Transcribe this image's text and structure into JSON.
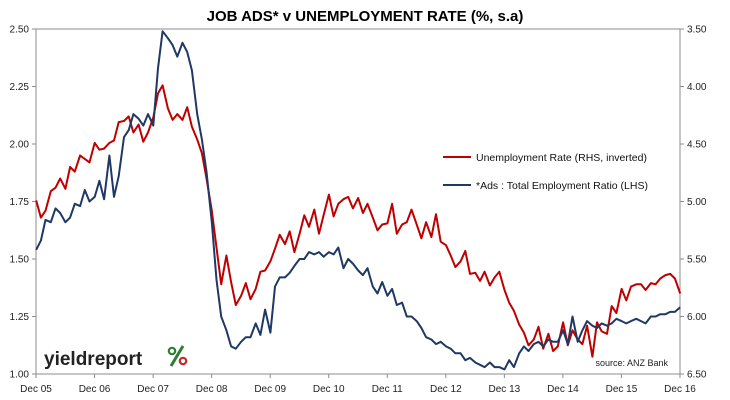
{
  "chart_data": {
    "type": "line",
    "title": "JOB ADS* v UNEMPLOYMENT RATE (%, s.a)",
    "source": "source: ANZ Bank",
    "brand": {
      "text": "yieldreport",
      "symbol": "%",
      "symbol_colors": [
        "#2e7d32",
        "#c62828"
      ]
    },
    "grid": false,
    "legend_position": "center-right",
    "x_axis": {
      "range": [
        2005.917,
        2016.917
      ],
      "tick_values": [
        2005.917,
        2006.917,
        2007.917,
        2008.917,
        2009.917,
        2010.917,
        2011.917,
        2012.917,
        2013.917,
        2014.917,
        2015.917,
        2016.917
      ],
      "tick_labels": [
        "Dec 05",
        "Dec 06",
        "Dec 07",
        "Dec 08",
        "Dec 09",
        "Dec 10",
        "Dec 11",
        "Dec 12",
        "Dec 13",
        "Dec 14",
        "Dec 15",
        "Dec 16"
      ]
    },
    "y_axis_left": {
      "range": [
        1.0,
        2.5
      ],
      "tick_values": [
        1.0,
        1.25,
        1.5,
        1.75,
        2.0,
        2.25,
        2.5
      ],
      "tick_labels": [
        "1.00",
        "1.25",
        "1.50",
        "1.75",
        "2.00",
        "2.25",
        "2.50"
      ]
    },
    "y_axis_right": {
      "range": [
        3.5,
        6.5
      ],
      "inverted": true,
      "tick_values": [
        3.5,
        4.0,
        4.5,
        5.0,
        5.5,
        6.0,
        6.5
      ],
      "tick_labels": [
        "3.50",
        "4.00",
        "4.50",
        "5.00",
        "5.50",
        "6.00",
        "6.50"
      ]
    },
    "series": [
      {
        "name": "Unemployment Rate (RHS, inverted)",
        "color": "#c00000",
        "axis": "right",
        "points": [
          [
            2005.92,
            4.99
          ],
          [
            2006.0,
            5.14
          ],
          [
            2006.08,
            5.08
          ],
          [
            2006.17,
            4.91
          ],
          [
            2006.25,
            4.88
          ],
          [
            2006.33,
            4.8
          ],
          [
            2006.42,
            4.89
          ],
          [
            2006.5,
            4.7
          ],
          [
            2006.58,
            4.74
          ],
          [
            2006.67,
            4.6
          ],
          [
            2006.75,
            4.63
          ],
          [
            2006.83,
            4.66
          ],
          [
            2006.92,
            4.49
          ],
          [
            2007.0,
            4.55
          ],
          [
            2007.08,
            4.54
          ],
          [
            2007.17,
            4.49
          ],
          [
            2007.25,
            4.47
          ],
          [
            2007.33,
            4.31
          ],
          [
            2007.42,
            4.3
          ],
          [
            2007.5,
            4.26
          ],
          [
            2007.58,
            4.4
          ],
          [
            2007.67,
            4.33
          ],
          [
            2007.75,
            4.48
          ],
          [
            2007.83,
            4.4
          ],
          [
            2007.92,
            4.27
          ],
          [
            2008.0,
            4.06
          ],
          [
            2008.08,
            3.99
          ],
          [
            2008.17,
            4.19
          ],
          [
            2008.25,
            4.29
          ],
          [
            2008.33,
            4.24
          ],
          [
            2008.42,
            4.29
          ],
          [
            2008.5,
            4.18
          ],
          [
            2008.58,
            4.35
          ],
          [
            2008.67,
            4.46
          ],
          [
            2008.75,
            4.58
          ],
          [
            2008.83,
            4.8
          ],
          [
            2008.92,
            5.08
          ],
          [
            2009.0,
            5.4
          ],
          [
            2009.08,
            5.72
          ],
          [
            2009.17,
            5.47
          ],
          [
            2009.25,
            5.7
          ],
          [
            2009.33,
            5.9
          ],
          [
            2009.42,
            5.82
          ],
          [
            2009.5,
            5.71
          ],
          [
            2009.58,
            5.85
          ],
          [
            2009.67,
            5.76
          ],
          [
            2009.75,
            5.61
          ],
          [
            2009.83,
            5.6
          ],
          [
            2009.92,
            5.52
          ],
          [
            2010.0,
            5.41
          ],
          [
            2010.08,
            5.29
          ],
          [
            2010.17,
            5.37
          ],
          [
            2010.25,
            5.26
          ],
          [
            2010.33,
            5.44
          ],
          [
            2010.42,
            5.28
          ],
          [
            2010.5,
            5.12
          ],
          [
            2010.58,
            5.22
          ],
          [
            2010.67,
            5.07
          ],
          [
            2010.75,
            5.28
          ],
          [
            2010.83,
            5.12
          ],
          [
            2010.92,
            4.94
          ],
          [
            2011.0,
            5.13
          ],
          [
            2011.08,
            5.02
          ],
          [
            2011.17,
            4.98
          ],
          [
            2011.25,
            4.96
          ],
          [
            2011.33,
            5.06
          ],
          [
            2011.42,
            4.97
          ],
          [
            2011.5,
            5.1
          ],
          [
            2011.58,
            5.02
          ],
          [
            2011.67,
            5.14
          ],
          [
            2011.75,
            5.25
          ],
          [
            2011.83,
            5.2
          ],
          [
            2011.92,
            5.19
          ],
          [
            2012.0,
            5.02
          ],
          [
            2012.08,
            5.28
          ],
          [
            2012.17,
            5.2
          ],
          [
            2012.25,
            5.18
          ],
          [
            2012.33,
            5.07
          ],
          [
            2012.42,
            5.2
          ],
          [
            2012.5,
            5.32
          ],
          [
            2012.58,
            5.18
          ],
          [
            2012.67,
            5.31
          ],
          [
            2012.75,
            5.11
          ],
          [
            2012.83,
            5.35
          ],
          [
            2012.92,
            5.38
          ],
          [
            2013.0,
            5.47
          ],
          [
            2013.08,
            5.57
          ],
          [
            2013.17,
            5.52
          ],
          [
            2013.25,
            5.43
          ],
          [
            2013.33,
            5.63
          ],
          [
            2013.42,
            5.62
          ],
          [
            2013.5,
            5.69
          ],
          [
            2013.58,
            5.61
          ],
          [
            2013.67,
            5.73
          ],
          [
            2013.75,
            5.66
          ],
          [
            2013.83,
            5.61
          ],
          [
            2013.92,
            5.77
          ],
          [
            2014.0,
            5.88
          ],
          [
            2014.08,
            5.95
          ],
          [
            2014.17,
            6.07
          ],
          [
            2014.25,
            6.14
          ],
          [
            2014.33,
            6.25
          ],
          [
            2014.42,
            6.2
          ],
          [
            2014.5,
            6.09
          ],
          [
            2014.58,
            6.28
          ],
          [
            2014.67,
            6.15
          ],
          [
            2014.75,
            6.3
          ],
          [
            2014.83,
            6.26
          ],
          [
            2014.92,
            6.05
          ],
          [
            2015.0,
            6.25
          ],
          [
            2015.08,
            6.12
          ],
          [
            2015.17,
            6.2
          ],
          [
            2015.25,
            6.24
          ],
          [
            2015.33,
            6.08
          ],
          [
            2015.42,
            6.35
          ],
          [
            2015.5,
            6.05
          ],
          [
            2015.58,
            6.13
          ],
          [
            2015.67,
            6.15
          ],
          [
            2015.75,
            5.91
          ],
          [
            2015.83,
            5.97
          ],
          [
            2015.92,
            5.76
          ],
          [
            2016.0,
            5.86
          ],
          [
            2016.08,
            5.74
          ],
          [
            2016.17,
            5.72
          ],
          [
            2016.25,
            5.72
          ],
          [
            2016.33,
            5.77
          ],
          [
            2016.42,
            5.71
          ],
          [
            2016.5,
            5.72
          ],
          [
            2016.58,
            5.67
          ],
          [
            2016.67,
            5.64
          ],
          [
            2016.75,
            5.63
          ],
          [
            2016.83,
            5.67
          ],
          [
            2016.92,
            5.8
          ]
        ]
      },
      {
        "name": "*Ads : Total Employment Ratio (LHS)",
        "color": "#1f3864",
        "axis": "left",
        "points": [
          [
            2005.92,
            1.54
          ],
          [
            2006.0,
            1.58
          ],
          [
            2006.08,
            1.67
          ],
          [
            2006.17,
            1.66
          ],
          [
            2006.25,
            1.72
          ],
          [
            2006.33,
            1.7
          ],
          [
            2006.42,
            1.66
          ],
          [
            2006.5,
            1.68
          ],
          [
            2006.58,
            1.74
          ],
          [
            2006.67,
            1.73
          ],
          [
            2006.75,
            1.8
          ],
          [
            2006.83,
            1.75
          ],
          [
            2006.92,
            1.77
          ],
          [
            2007.0,
            1.84
          ],
          [
            2007.08,
            1.76
          ],
          [
            2007.17,
            1.95
          ],
          [
            2007.25,
            1.77
          ],
          [
            2007.33,
            1.86
          ],
          [
            2007.42,
            2.03
          ],
          [
            2007.5,
            2.06
          ],
          [
            2007.58,
            2.13
          ],
          [
            2007.67,
            2.11
          ],
          [
            2007.75,
            2.08
          ],
          [
            2007.83,
            2.13
          ],
          [
            2007.92,
            2.08
          ],
          [
            2008.0,
            2.33
          ],
          [
            2008.08,
            2.49
          ],
          [
            2008.17,
            2.46
          ],
          [
            2008.25,
            2.43
          ],
          [
            2008.33,
            2.38
          ],
          [
            2008.42,
            2.44
          ],
          [
            2008.5,
            2.4
          ],
          [
            2008.58,
            2.32
          ],
          [
            2008.67,
            2.13
          ],
          [
            2008.75,
            2.02
          ],
          [
            2008.83,
            1.88
          ],
          [
            2008.92,
            1.66
          ],
          [
            2009.0,
            1.41
          ],
          [
            2009.08,
            1.25
          ],
          [
            2009.17,
            1.19
          ],
          [
            2009.25,
            1.12
          ],
          [
            2009.33,
            1.11
          ],
          [
            2009.42,
            1.14
          ],
          [
            2009.5,
            1.16
          ],
          [
            2009.58,
            1.16
          ],
          [
            2009.67,
            1.22
          ],
          [
            2009.75,
            1.17
          ],
          [
            2009.83,
            1.28
          ],
          [
            2009.92,
            1.18
          ],
          [
            2010.0,
            1.38
          ],
          [
            2010.08,
            1.42
          ],
          [
            2010.17,
            1.42
          ],
          [
            2010.25,
            1.44
          ],
          [
            2010.33,
            1.47
          ],
          [
            2010.42,
            1.5
          ],
          [
            2010.5,
            1.5
          ],
          [
            2010.58,
            1.53
          ],
          [
            2010.67,
            1.52
          ],
          [
            2010.75,
            1.53
          ],
          [
            2010.83,
            1.51
          ],
          [
            2010.92,
            1.53
          ],
          [
            2011.0,
            1.52
          ],
          [
            2011.08,
            1.55
          ],
          [
            2011.17,
            1.46
          ],
          [
            2011.25,
            1.5
          ],
          [
            2011.33,
            1.48
          ],
          [
            2011.42,
            1.45
          ],
          [
            2011.5,
            1.43
          ],
          [
            2011.58,
            1.46
          ],
          [
            2011.67,
            1.38
          ],
          [
            2011.75,
            1.35
          ],
          [
            2011.83,
            1.4
          ],
          [
            2011.92,
            1.34
          ],
          [
            2012.0,
            1.37
          ],
          [
            2012.08,
            1.3
          ],
          [
            2012.17,
            1.31
          ],
          [
            2012.25,
            1.25
          ],
          [
            2012.33,
            1.25
          ],
          [
            2012.42,
            1.23
          ],
          [
            2012.5,
            1.2
          ],
          [
            2012.58,
            1.16
          ],
          [
            2012.67,
            1.15
          ],
          [
            2012.75,
            1.13
          ],
          [
            2012.83,
            1.14
          ],
          [
            2012.92,
            1.12
          ],
          [
            2013.0,
            1.11
          ],
          [
            2013.08,
            1.09
          ],
          [
            2013.17,
            1.09
          ],
          [
            2013.25,
            1.06
          ],
          [
            2013.33,
            1.07
          ],
          [
            2013.42,
            1.05
          ],
          [
            2013.5,
            1.04
          ],
          [
            2013.58,
            1.03
          ],
          [
            2013.67,
            1.05
          ],
          [
            2013.75,
            1.03
          ],
          [
            2013.83,
            1.03
          ],
          [
            2013.92,
            1.02
          ],
          [
            2014.0,
            1.06
          ],
          [
            2014.08,
            1.03
          ],
          [
            2014.17,
            1.09
          ],
          [
            2014.25,
            1.12
          ],
          [
            2014.33,
            1.1
          ],
          [
            2014.42,
            1.13
          ],
          [
            2014.5,
            1.14
          ],
          [
            2014.58,
            1.12
          ],
          [
            2014.67,
            1.15
          ],
          [
            2014.75,
            1.14
          ],
          [
            2014.83,
            1.14
          ],
          [
            2014.92,
            1.19
          ],
          [
            2015.0,
            1.13
          ],
          [
            2015.08,
            1.25
          ],
          [
            2015.17,
            1.14
          ],
          [
            2015.25,
            1.19
          ],
          [
            2015.33,
            1.23
          ],
          [
            2015.42,
            1.21
          ],
          [
            2015.5,
            1.2
          ],
          [
            2015.58,
            1.22
          ],
          [
            2015.67,
            1.21
          ],
          [
            2015.75,
            1.22
          ],
          [
            2015.83,
            1.24
          ],
          [
            2015.92,
            1.23
          ],
          [
            2016.0,
            1.22
          ],
          [
            2016.08,
            1.23
          ],
          [
            2016.17,
            1.24
          ],
          [
            2016.25,
            1.23
          ],
          [
            2016.33,
            1.22
          ],
          [
            2016.42,
            1.25
          ],
          [
            2016.5,
            1.25
          ],
          [
            2016.58,
            1.26
          ],
          [
            2016.67,
            1.26
          ],
          [
            2016.75,
            1.27
          ],
          [
            2016.83,
            1.27
          ],
          [
            2016.92,
            1.29
          ]
        ]
      }
    ]
  }
}
